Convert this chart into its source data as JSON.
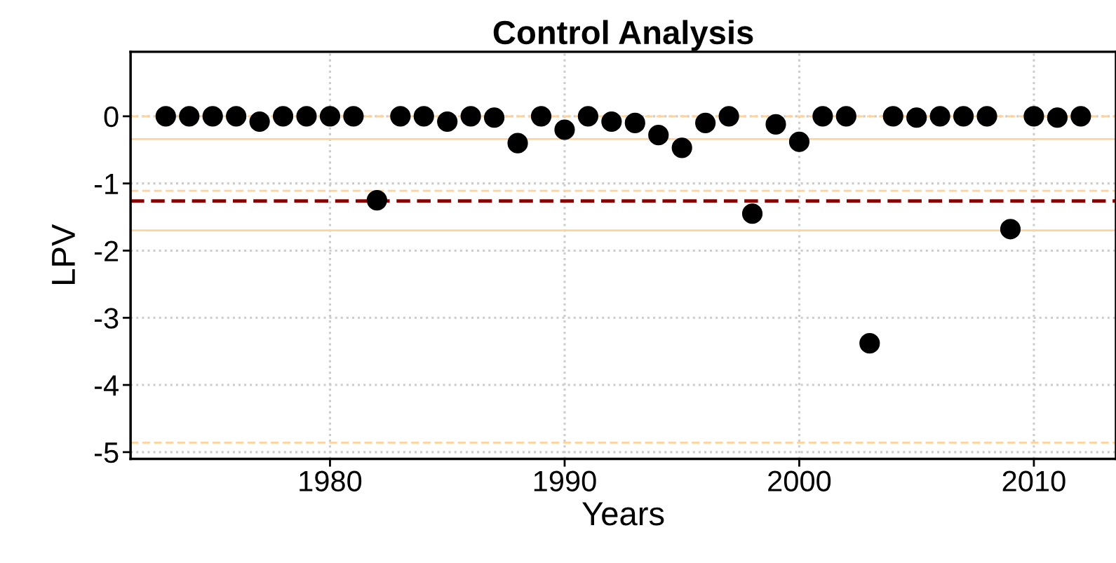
{
  "chart_data": {
    "type": "scatter",
    "title": "Control Analysis",
    "xlabel": "Years",
    "ylabel": "LPV",
    "x": [
      1973,
      1974,
      1975,
      1976,
      1977,
      1978,
      1979,
      1980,
      1981,
      1982,
      1983,
      1984,
      1985,
      1986,
      1987,
      1988,
      1989,
      1990,
      1991,
      1992,
      1993,
      1994,
      1995,
      1996,
      1997,
      1998,
      1999,
      2000,
      2001,
      2002,
      2003,
      2004,
      2005,
      2006,
      2007,
      2008,
      2009,
      2010,
      2011,
      2012
    ],
    "series": [
      {
        "color": "#000000",
        "values": [
          0,
          0,
          0,
          0,
          -0.08,
          0,
          0,
          0,
          0,
          -1.25,
          0,
          0,
          -0.08,
          0,
          -0.02,
          -0.4,
          0,
          -0.2,
          0,
          -0.08,
          -0.1,
          -0.28,
          -0.47,
          -0.1,
          0,
          -1.45,
          -0.12,
          -0.38,
          0,
          0,
          -3.38,
          0,
          -0.02,
          0,
          0,
          0,
          -1.68,
          0,
          -0.02,
          0
        ]
      }
    ],
    "marker": "circle",
    "xlim": [
      1971.5,
      2013.5
    ],
    "xticks": [
      1980,
      1990,
      2000,
      2010
    ],
    "ylim": [
      -5.1,
      0.96
    ],
    "yticks": [
      -5,
      -4,
      -3,
      -2,
      -1,
      0
    ],
    "grid": true,
    "ref_lines": [
      {
        "axis": "y",
        "value": 0,
        "color": "#ffd39b",
        "line_style": "dashed"
      },
      {
        "axis": "y",
        "value": -0.34,
        "color": "#ffd39b",
        "line_style": "solid"
      },
      {
        "axis": "y",
        "value": -1.11,
        "color": "#ffd39b",
        "line_style": "dashed"
      },
      {
        "axis": "y",
        "value": -1.26,
        "color": "#8b0000",
        "line_style": "dashed"
      },
      {
        "axis": "y",
        "value": -1.7,
        "color": "#ffd39b",
        "line_style": "solid"
      },
      {
        "axis": "y",
        "value": -4.86,
        "color": "#ffd39b",
        "line_style": "dashed"
      }
    ]
  }
}
